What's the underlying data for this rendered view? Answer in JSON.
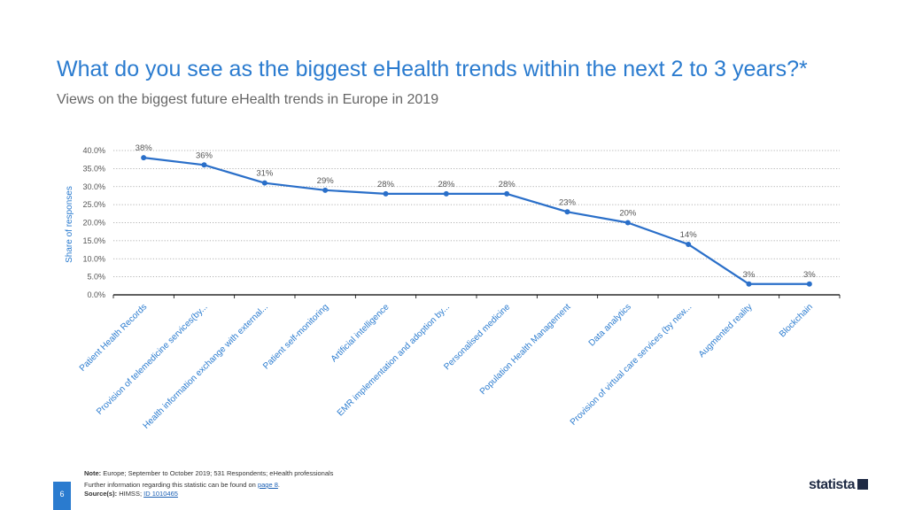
{
  "header": {
    "title": "What do you see as the biggest eHealth trends within the next 2 to 3 years?*",
    "subtitle": "Views on the biggest future eHealth trends in Europe in 2019"
  },
  "chart_data": {
    "type": "line",
    "title": "What do you see as the biggest eHealth trends within the next 2 to 3 years?*",
    "subtitle": "Views on the biggest future eHealth trends in Europe in 2019",
    "xlabel": "",
    "ylabel": "Share of responses",
    "ylim": [
      0,
      40
    ],
    "yticks": [
      0,
      5,
      10,
      15,
      20,
      25,
      30,
      35,
      40
    ],
    "ytick_labels": [
      "0.0%",
      "5.0%",
      "10.0%",
      "15.0%",
      "20.0%",
      "25.0%",
      "30.0%",
      "35.0%",
      "40.0%"
    ],
    "grid": true,
    "categories": [
      "Patient Health Records",
      "Provision of telemedicine services(by...",
      "Health information exchange with external...",
      "Patient self-monitoring",
      "Artificial intelligence",
      "EMR implementation and adoption by...",
      "Personalised medicine",
      "Population Health Management",
      "Data analytics",
      "Provision of virtual care services (by new...",
      "Augmented reality",
      "Blockchain"
    ],
    "values": [
      38,
      36,
      31,
      29,
      28,
      28,
      28,
      23,
      20,
      14,
      3,
      3
    ],
    "data_labels": [
      "38%",
      "36%",
      "31%",
      "29%",
      "28%",
      "28%",
      "28%",
      "23%",
      "20%",
      "14%",
      "3%",
      "3%"
    ],
    "color": "#2a6fc9"
  },
  "footer": {
    "note_label": "Note:",
    "note_text": "Europe; September to October 2019; 531 Respondents; eHealth professionals",
    "further_text": "Further information regarding this statistic can be found on",
    "further_link": "page 8",
    "further_end": ".",
    "source_label": "Source(s):",
    "source_text": "HIMSS;",
    "source_link": "ID 1010465",
    "page_number": "6",
    "brand": "statista"
  }
}
